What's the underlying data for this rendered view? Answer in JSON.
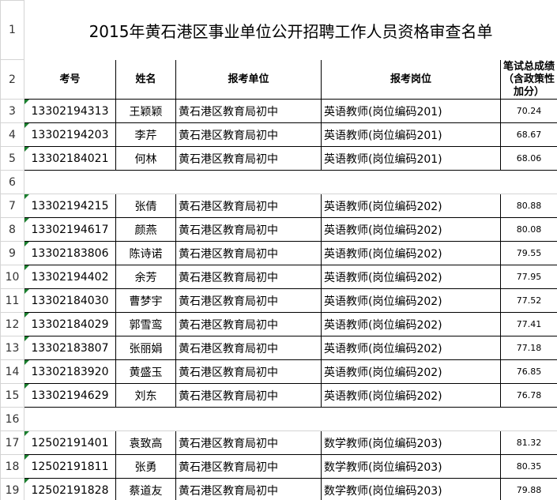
{
  "title": "2015年黄石港区事业单位公开招聘工作人员资格审查名单",
  "title_row": "1",
  "header": {
    "row": "2",
    "cells": [
      "考号",
      "姓名",
      "报考单位",
      "报考岗位",
      "笔试总成绩（含政策性加分）"
    ]
  },
  "rows": [
    {
      "num": "3",
      "cells": [
        "13302194313",
        "王颖颖",
        "黄石港区教育局初中",
        "英语教师(岗位编码201)",
        70.24
      ]
    },
    {
      "num": "4",
      "cells": [
        "13302194203",
        "李芹",
        "黄石港区教育局初中",
        "英语教师(岗位编码201)",
        68.67
      ]
    },
    {
      "num": "5",
      "cells": [
        "13302184021",
        "何林",
        "黄石港区教育局初中",
        "英语教师(岗位编码201)",
        68.06
      ]
    },
    {
      "num": "6"
    },
    {
      "num": "7",
      "cells": [
        "13302194215",
        "张倩",
        "黄石港区教育局初中",
        "英语教师(岗位编码202)",
        80.88
      ]
    },
    {
      "num": "8",
      "cells": [
        "13302194617",
        "颜燕",
        "黄石港区教育局初中",
        "英语教师(岗位编码202)",
        80.08
      ]
    },
    {
      "num": "9",
      "cells": [
        "13302183806",
        "陈诗诺",
        "黄石港区教育局初中",
        "英语教师(岗位编码202)",
        79.55
      ]
    },
    {
      "num": "10",
      "cells": [
        "13302194402",
        "余芳",
        "黄石港区教育局初中",
        "英语教师(岗位编码202)",
        77.95
      ]
    },
    {
      "num": "11",
      "cells": [
        "13302184030",
        "曹梦宇",
        "黄石港区教育局初中",
        "英语教师(岗位编码202)",
        77.52
      ]
    },
    {
      "num": "12",
      "cells": [
        "13302184029",
        "郭雪鸾",
        "黄石港区教育局初中",
        "英语教师(岗位编码202)",
        77.41
      ]
    },
    {
      "num": "13",
      "cells": [
        "13302183807",
        "张丽娟",
        "黄石港区教育局初中",
        "英语教师(岗位编码202)",
        77.18
      ]
    },
    {
      "num": "14",
      "cells": [
        "13302183920",
        "黄盛玉",
        "黄石港区教育局初中",
        "英语教师(岗位编码202)",
        76.85
      ]
    },
    {
      "num": "15",
      "cells": [
        "13302194629",
        "刘东",
        "黄石港区教育局初中",
        "英语教师(岗位编码202)",
        76.78
      ]
    },
    {
      "num": "16"
    },
    {
      "num": "17",
      "cells": [
        "12502191401",
        "袁致高",
        "黄石港区教育局初中",
        "数学教师(岗位编码203)",
        81.32
      ]
    },
    {
      "num": "18",
      "cells": [
        "12502191811",
        "张勇",
        "黄石港区教育局初中",
        "数学教师(岗位编码203)",
        80.35
      ]
    },
    {
      "num": "19",
      "cells": [
        "12502191828",
        "蔡道友",
        "黄石港区教育局初中",
        "数学教师(岗位编码203)",
        79.88
      ]
    }
  ]
}
